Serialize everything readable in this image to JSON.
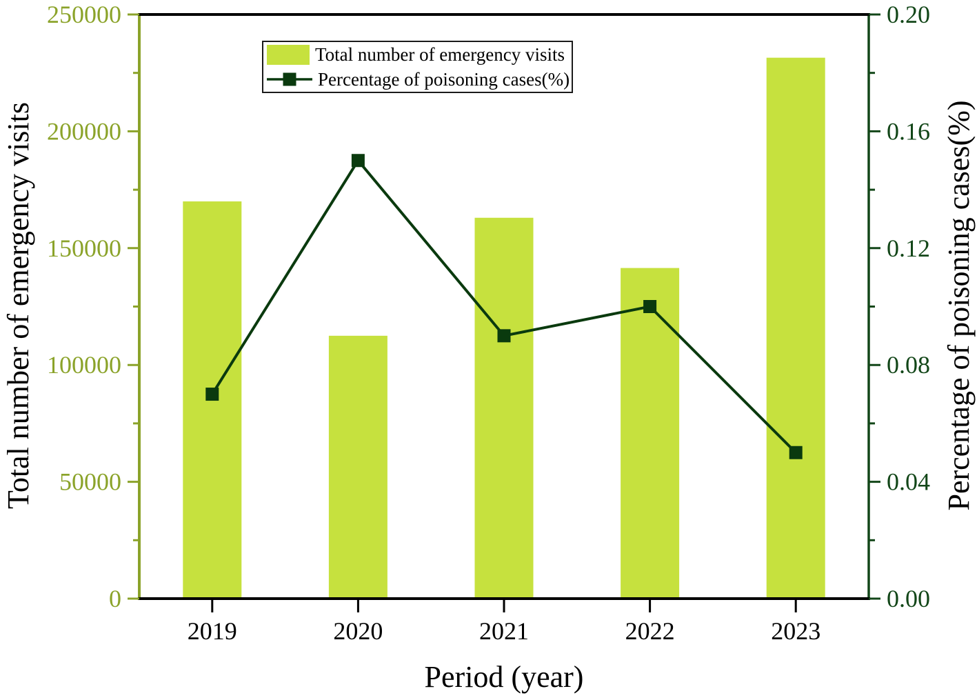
{
  "chart_data": {
    "type": "bar",
    "categories": [
      "2019",
      "2020",
      "2021",
      "2022",
      "2023"
    ],
    "series": [
      {
        "name": "Total number of emergency visits",
        "type": "bar",
        "axis": "left",
        "values": [
          170000,
          112500,
          163000,
          141500,
          231500
        ]
      },
      {
        "name": "Percentage of poisoning cases(%)",
        "type": "line",
        "axis": "right",
        "values": [
          0.07,
          0.15,
          0.09,
          0.1,
          0.05
        ]
      }
    ],
    "title": "",
    "xlabel": "Period (year)",
    "ylabel_left": "Total number of emergency visits",
    "ylabel_right": "Percentage of poisoning cases(%)",
    "left_axis": {
      "min": 0,
      "max": 250000,
      "major_step": 50000,
      "minor_step": 25000,
      "tick_labels": [
        "0",
        "50000",
        "100000",
        "150000",
        "200000",
        "250000"
      ]
    },
    "right_axis": {
      "min": 0,
      "max": 0.2,
      "major_step": 0.04,
      "minor_step": 0.02,
      "tick_labels": [
        "0.00",
        "0.04",
        "0.08",
        "0.12",
        "0.16",
        "0.20"
      ]
    },
    "legend_position": "top-center",
    "grid": false
  },
  "legend": {
    "items": [
      {
        "label": "Total number of emergency visits",
        "swatch": "bar"
      },
      {
        "label": "Percentage of poisoning cases(%)",
        "swatch": "line-marker"
      }
    ]
  },
  "colors": {
    "background": "#ffffff",
    "bar_fill": "#c6e13e",
    "left_axis": "#8ba32a",
    "right_axis": "#124618",
    "line": "#0a3a0e",
    "frame_black": "#000000",
    "x_tick_label": "#000000",
    "legend_border": "#1a1a1a"
  }
}
